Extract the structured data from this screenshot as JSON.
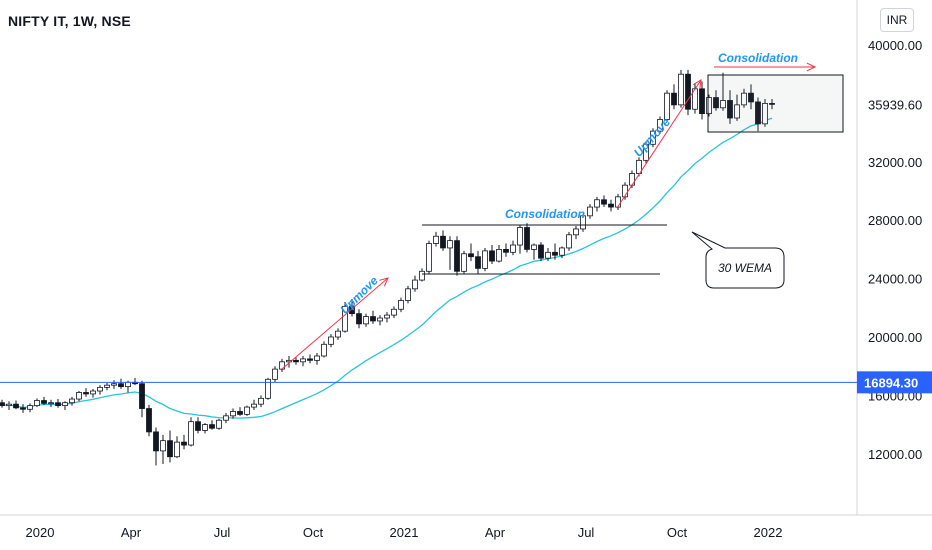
{
  "title": "NIFTY IT, 1W, NSE",
  "currency": "INR",
  "chart_data": {
    "type": "candlestick",
    "price_axis_ticks": [
      40000,
      35939.6,
      32000,
      28000,
      24000,
      20000,
      16000,
      12000
    ],
    "price_axis_labels": [
      "40000.00",
      "35939.60",
      "32000.00",
      "28000.00",
      "24000.00",
      "20000.00",
      "16000.00",
      "12000.00"
    ],
    "time_axis_labels": [
      "2020",
      "Apr",
      "Jul",
      "Oct",
      "2021",
      "Apr",
      "Jul",
      "Oct",
      "2022"
    ],
    "time_axis_weeks": [
      5,
      18,
      31,
      44,
      57,
      70,
      83,
      96,
      109
    ],
    "ylim": [
      9000,
      42000
    ],
    "xlim": [
      0,
      113
    ],
    "horizontal_line": {
      "value": 16894.3,
      "label": "16894.30",
      "color": "#2962ff"
    },
    "ma": {
      "name": "30 WEMA",
      "color": "#26c6da"
    },
    "colors": {
      "up_body": "#ffffff",
      "down_body": "#131722",
      "wick": "#131722"
    },
    "candles": [
      [
        15500,
        15700,
        15150,
        15300
      ],
      [
        15300,
        15600,
        15000,
        15400
      ],
      [
        15400,
        15650,
        15050,
        15150
      ],
      [
        15150,
        15400,
        14800,
        15050
      ],
      [
        15050,
        15450,
        14850,
        15300
      ],
      [
        15300,
        15800,
        15200,
        15650
      ],
      [
        15650,
        15900,
        15350,
        15450
      ],
      [
        15450,
        15700,
        15200,
        15500
      ],
      [
        15500,
        15750,
        15150,
        15300
      ],
      [
        15300,
        15600,
        15000,
        15500
      ],
      [
        15500,
        15900,
        15300,
        15750
      ],
      [
        15750,
        16300,
        15600,
        16200
      ],
      [
        16200,
        16500,
        15900,
        16100
      ],
      [
        16100,
        16450,
        15850,
        16300
      ],
      [
        16300,
        16700,
        16050,
        16550
      ],
      [
        16550,
        16850,
        16350,
        16700
      ],
      [
        16700,
        17050,
        16450,
        16800
      ],
      [
        16800,
        17150,
        16450,
        16600
      ],
      [
        16600,
        17000,
        16200,
        16900
      ],
      [
        16900,
        17200,
        16700,
        16800
      ],
      [
        16800,
        17000,
        14500,
        15100
      ],
      [
        15100,
        15350,
        13200,
        13500
      ],
      [
        13500,
        13800,
        11200,
        12200
      ],
      [
        12200,
        13300,
        11300,
        12900
      ],
      [
        12900,
        13600,
        11400,
        11800
      ],
      [
        11800,
        13200,
        11700,
        12800
      ],
      [
        12800,
        13300,
        12300,
        12600
      ],
      [
        12600,
        14500,
        12500,
        14200
      ],
      [
        14200,
        14500,
        13400,
        13600
      ],
      [
        13600,
        14100,
        13400,
        14000
      ],
      [
        14000,
        14300,
        13650,
        13750
      ],
      [
        13750,
        14400,
        13650,
        14300
      ],
      [
        14300,
        14800,
        14100,
        14600
      ],
      [
        14600,
        15100,
        14400,
        14900
      ],
      [
        14900,
        15200,
        14600,
        14700
      ],
      [
        14700,
        15300,
        14600,
        15200
      ],
      [
        15200,
        15700,
        15000,
        15400
      ],
      [
        15400,
        16000,
        15200,
        15800
      ],
      [
        15800,
        17200,
        15700,
        17100
      ],
      [
        17100,
        18000,
        16900,
        17800
      ],
      [
        17800,
        18500,
        17600,
        18300
      ],
      [
        18300,
        18700,
        17900,
        18400
      ],
      [
        18400,
        18600,
        18100,
        18300
      ],
      [
        18300,
        18700,
        18000,
        18500
      ],
      [
        18500,
        18800,
        18200,
        18400
      ],
      [
        18400,
        18900,
        18100,
        18700
      ],
      [
        18700,
        19700,
        18600,
        19500
      ],
      [
        19500,
        20200,
        19300,
        20000
      ],
      [
        20000,
        20600,
        19800,
        20400
      ],
      [
        20400,
        22400,
        20300,
        22100
      ],
      [
        22100,
        22600,
        21400,
        21600
      ],
      [
        21600,
        21900,
        20600,
        20900
      ],
      [
        20900,
        21600,
        20700,
        21400
      ],
      [
        21400,
        21800,
        20900,
        21100
      ],
      [
        21100,
        21500,
        20800,
        21300
      ],
      [
        21300,
        21700,
        21000,
        21500
      ],
      [
        21500,
        22100,
        21300,
        21900
      ],
      [
        21900,
        22700,
        21700,
        22500
      ],
      [
        22500,
        23500,
        22300,
        23300
      ],
      [
        23300,
        24200,
        23100,
        23900
      ],
      [
        23900,
        24700,
        23800,
        24500
      ],
      [
        24500,
        26600,
        24300,
        26400
      ],
      [
        26400,
        27200,
        26200,
        26900
      ],
      [
        26900,
        27300,
        25900,
        26100
      ],
      [
        26100,
        26900,
        24600,
        26600
      ],
      [
        26600,
        26900,
        24200,
        24500
      ],
      [
        24500,
        25900,
        24300,
        25700
      ],
      [
        25700,
        26400,
        25200,
        25500
      ],
      [
        25500,
        25900,
        24300,
        24700
      ],
      [
        24700,
        26100,
        24500,
        25900
      ],
      [
        25900,
        26300,
        25000,
        25200
      ],
      [
        25200,
        26300,
        25100,
        26000
      ],
      [
        26000,
        26400,
        25500,
        25800
      ],
      [
        25800,
        26600,
        25600,
        26300
      ],
      [
        26300,
        27700,
        25700,
        27500
      ],
      [
        27500,
        27800,
        25800,
        26000
      ],
      [
        26000,
        26400,
        25300,
        26300
      ],
      [
        26300,
        26500,
        25200,
        25400
      ],
      [
        25400,
        26100,
        25200,
        25800
      ],
      [
        25800,
        26400,
        25300,
        25600
      ],
      [
        25600,
        26200,
        25400,
        26100
      ],
      [
        26100,
        27200,
        25900,
        27000
      ],
      [
        27000,
        27600,
        26700,
        27400
      ],
      [
        27400,
        28400,
        27200,
        28300
      ],
      [
        28300,
        29100,
        28100,
        28900
      ],
      [
        28900,
        29600,
        28600,
        29400
      ],
      [
        29400,
        29700,
        28900,
        29100
      ],
      [
        29100,
        29400,
        28600,
        28900
      ],
      [
        28900,
        29800,
        28700,
        29600
      ],
      [
        29600,
        30600,
        29400,
        30400
      ],
      [
        30400,
        31400,
        30200,
        31200
      ],
      [
        31200,
        32300,
        31000,
        32100
      ],
      [
        32100,
        33400,
        31900,
        33200
      ],
      [
        33200,
        34300,
        33000,
        34100
      ],
      [
        34100,
        35100,
        33900,
        34900
      ],
      [
        34900,
        36900,
        34700,
        36700
      ],
      [
        36700,
        37300,
        35600,
        35900
      ],
      [
        35900,
        38300,
        35700,
        38000
      ],
      [
        38000,
        38300,
        35200,
        35600
      ],
      [
        35600,
        37400,
        35300,
        37000
      ],
      [
        37000,
        37500,
        34900,
        35300
      ],
      [
        35300,
        36600,
        35100,
        36400
      ],
      [
        36400,
        36900,
        35500,
        35700
      ],
      [
        35700,
        38100,
        35500,
        36200
      ],
      [
        36200,
        36900,
        34600,
        35000
      ],
      [
        35000,
        36600,
        34800,
        35900
      ],
      [
        35900,
        37000,
        35700,
        36700
      ],
      [
        36700,
        37300,
        35600,
        36100
      ],
      [
        36100,
        36400,
        34100,
        34600
      ],
      [
        34600,
        36300,
        34400,
        36000
      ],
      [
        36000,
        36300,
        35600,
        35939.6
      ]
    ],
    "annotations": [
      {
        "text": "Upmove",
        "rotate": -45
      },
      {
        "text": "Consolidation"
      },
      {
        "text": "Upmove",
        "rotate": -45
      },
      {
        "text": "Consolidation"
      },
      {
        "text": "30 WEMA"
      }
    ]
  }
}
